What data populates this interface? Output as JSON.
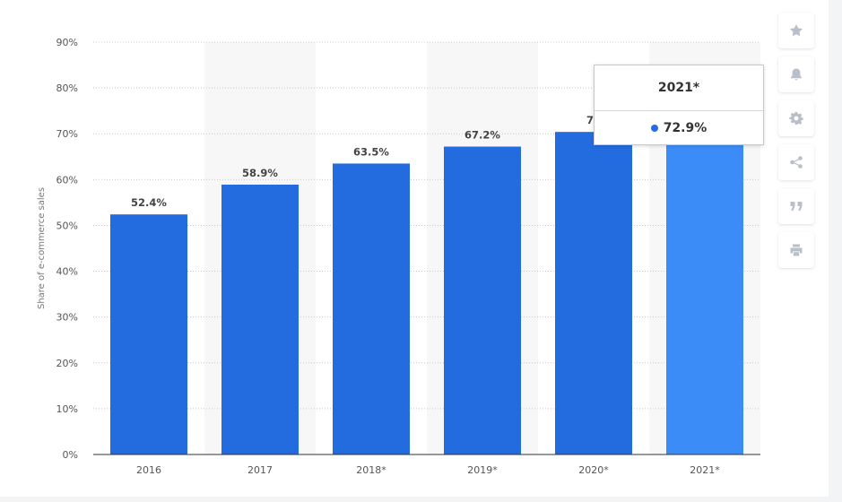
{
  "chart_data": {
    "type": "bar",
    "categories": [
      "2016",
      "2017",
      "2018*",
      "2019*",
      "2020*",
      "2021*"
    ],
    "values": [
      52.4,
      58.9,
      63.5,
      67.2,
      70.4,
      72.9
    ],
    "data_labels": [
      "52.4%",
      "58.9%",
      "63.5%",
      "67.2%",
      "70",
      ""
    ],
    "ylabel": "Share of e-commerce sales",
    "xlabel": "",
    "ylim": [
      0,
      90
    ],
    "yticks": [
      "0%",
      "10%",
      "20%",
      "30%",
      "40%",
      "50%",
      "60%",
      "70%",
      "80%",
      "90%"
    ],
    "grid": true,
    "highlighted_index": 5,
    "colors": {
      "bar": "#236ce0",
      "bar_highlight": "#3c8cf7",
      "band": "#f7f7f7",
      "grid": "#c8c8c8"
    }
  },
  "tooltip": {
    "title": "2021*",
    "value": "72.9%",
    "dot_color": "#236ce0"
  },
  "toolbar": {
    "items": [
      "star-icon",
      "bell-icon",
      "gear-icon",
      "share-icon",
      "quote-icon",
      "print-icon"
    ]
  }
}
